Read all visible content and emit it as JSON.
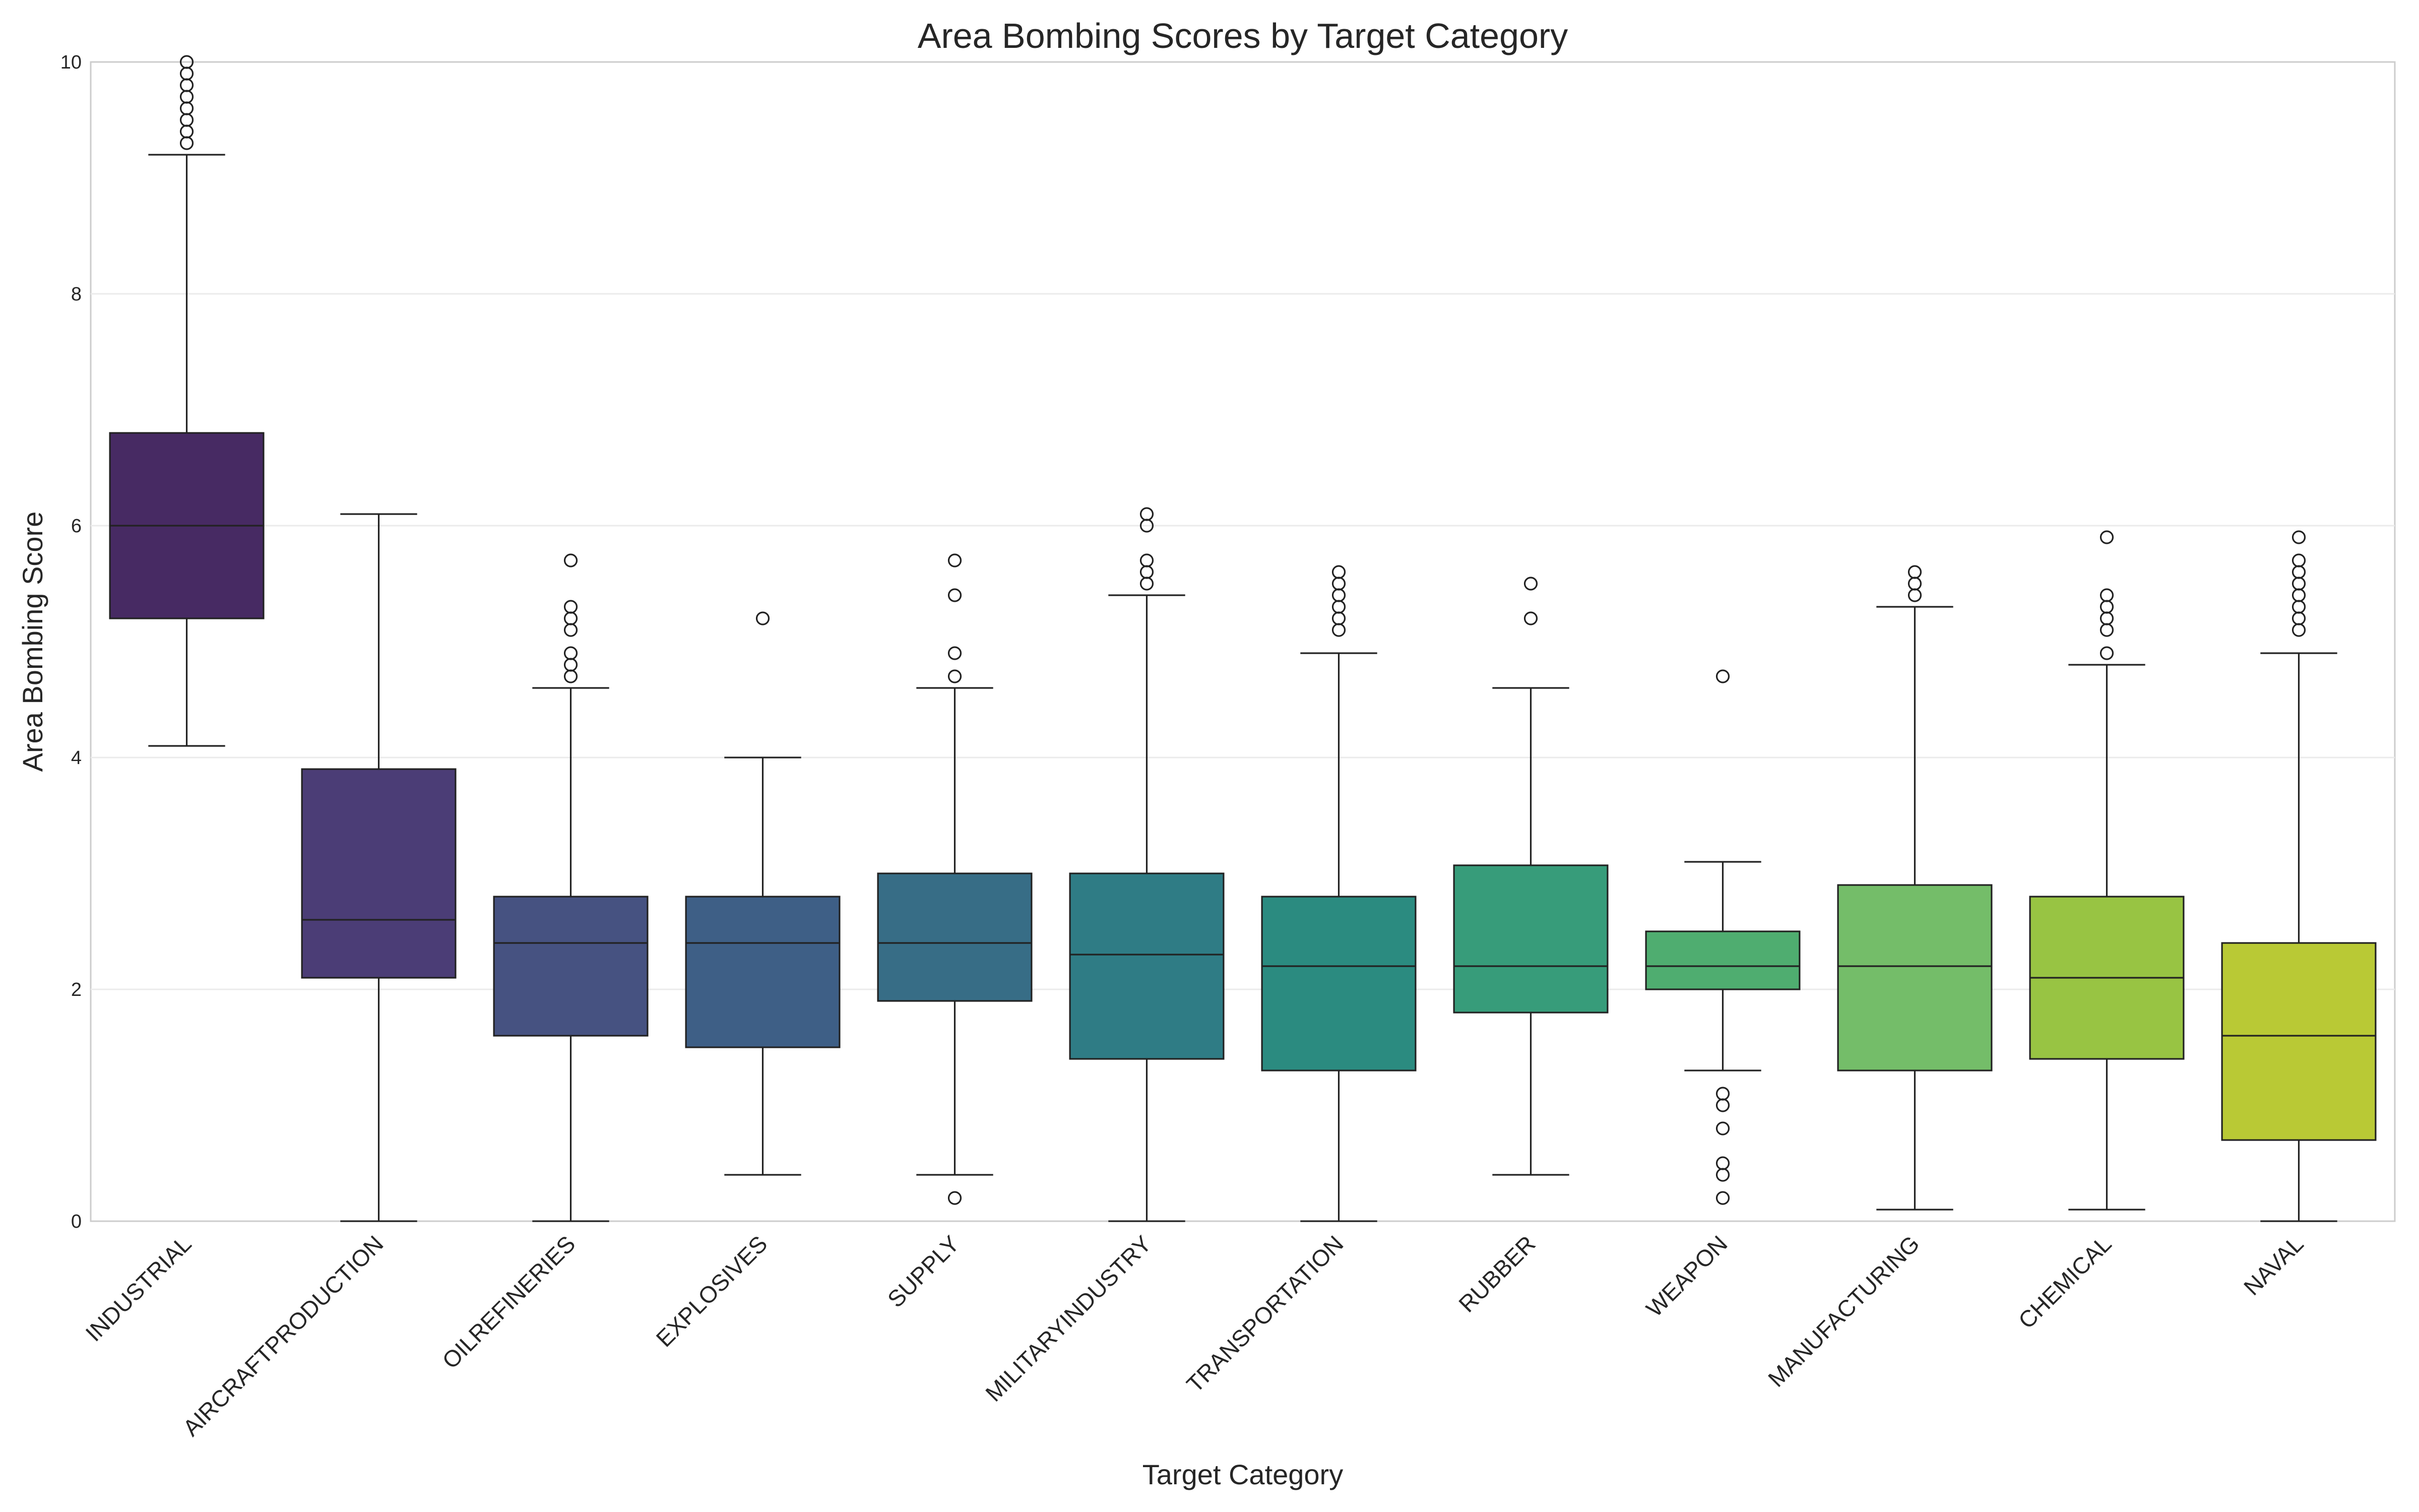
{
  "chart_data": {
    "type": "box",
    "title": "Area Bombing Scores by Target Category",
    "xlabel": "Target Category",
    "ylabel": "Area Bombing Score",
    "ylim": [
      0,
      10
    ],
    "yticks": [
      "0",
      "2",
      "4",
      "6",
      "8",
      "10"
    ],
    "grid": true,
    "legend": "none",
    "categories": [
      "INDUSTRIAL",
      "AIRCRAFTPRODUCTION",
      "OILREFINERIES",
      "EXPLOSIVES",
      "SUPPLY",
      "MILITARYINDUSTRY",
      "TRANSPORTATION",
      "RUBBER",
      "WEAPON",
      "MANUFACTURING",
      "CHEMICAL",
      "NAVAL"
    ],
    "boxes": [
      {
        "category": "INDUSTRIAL",
        "whisker_low": 4.1,
        "q1": 5.2,
        "median": 6.0,
        "q3": 6.8,
        "whisker_high": 9.2,
        "outliers": [
          9.3,
          9.4,
          9.5,
          9.6,
          9.7,
          9.8,
          9.9,
          10.0
        ],
        "color": "#472a63"
      },
      {
        "category": "AIRCRAFTPRODUCTION",
        "whisker_low": 0.0,
        "q1": 2.1,
        "median": 2.6,
        "q3": 3.9,
        "whisker_high": 6.1,
        "outliers": [],
        "color": "#4b3d76"
      },
      {
        "category": "OILREFINERIES",
        "whisker_low": 0.0,
        "q1": 1.6,
        "median": 2.4,
        "q3": 2.8,
        "whisker_high": 4.6,
        "outliers": [
          4.7,
          4.8,
          4.9,
          5.1,
          5.2,
          5.3,
          5.7
        ],
        "color": "#465281"
      },
      {
        "category": "EXPLOSIVES",
        "whisker_low": 0.4,
        "q1": 1.5,
        "median": 2.4,
        "q3": 2.8,
        "whisker_high": 4.0,
        "outliers": [
          5.2
        ],
        "color": "#3e5f86"
      },
      {
        "category": "SUPPLY",
        "whisker_low": 0.4,
        "q1": 1.9,
        "median": 2.4,
        "q3": 3.0,
        "whisker_high": 4.6,
        "outliers": [
          0.2,
          4.7,
          4.9,
          5.4,
          5.7
        ],
        "color": "#376d86"
      },
      {
        "category": "MILITARYINDUSTRY",
        "whisker_low": 0.0,
        "q1": 1.4,
        "median": 2.3,
        "q3": 3.0,
        "whisker_high": 5.4,
        "outliers": [
          5.5,
          5.6,
          5.7,
          6.0,
          6.1
        ],
        "color": "#2f7c85"
      },
      {
        "category": "TRANSPORTATION",
        "whisker_low": 0.0,
        "q1": 1.3,
        "median": 2.2,
        "q3": 2.8,
        "whisker_high": 4.9,
        "outliers": [
          5.1,
          5.2,
          5.3,
          5.4,
          5.5,
          5.6
        ],
        "color": "#2b8b80"
      },
      {
        "category": "RUBBER",
        "whisker_low": 0.4,
        "q1": 1.8,
        "median": 2.2,
        "q3": 3.07,
        "whisker_high": 4.6,
        "outliers": [
          5.2,
          5.5
        ],
        "color": "#379c7a"
      },
      {
        "category": "WEAPON",
        "whisker_low": 1.3,
        "q1": 2.0,
        "median": 2.2,
        "q3": 2.5,
        "whisker_high": 3.1,
        "outliers": [
          0.2,
          0.4,
          0.5,
          0.8,
          1.0,
          1.1,
          4.7
        ],
        "color": "#4fad70"
      },
      {
        "category": "MANUFACTURING",
        "whisker_low": 0.1,
        "q1": 1.3,
        "median": 2.2,
        "q3": 2.9,
        "whisker_high": 5.3,
        "outliers": [
          5.4,
          5.5,
          5.6
        ],
        "color": "#74bd69"
      },
      {
        "category": "CHEMICAL",
        "whisker_low": 0.1,
        "q1": 1.4,
        "median": 2.1,
        "q3": 2.8,
        "whisker_high": 4.8,
        "outliers": [
          4.9,
          5.1,
          5.2,
          5.3,
          5.4,
          5.9
        ],
        "color": "#98c443"
      },
      {
        "category": "NAVAL",
        "whisker_low": 0.0,
        "q1": 0.7,
        "median": 1.6,
        "q3": 2.4,
        "whisker_high": 4.9,
        "outliers": [
          5.1,
          5.2,
          5.3,
          5.4,
          5.5,
          5.6,
          5.7,
          5.9
        ],
        "color": "#b9c935"
      }
    ]
  }
}
